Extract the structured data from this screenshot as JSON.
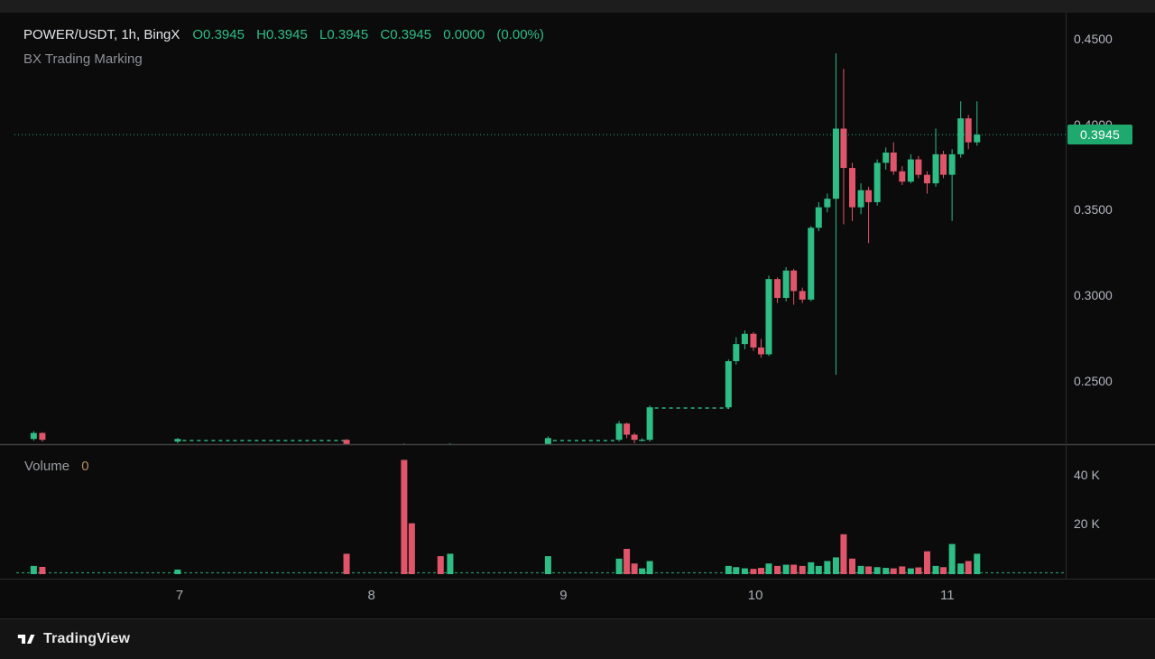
{
  "header": {
    "symbol_line": "POWER/USDT, 1h, BingX",
    "ohlc": {
      "open": "O0.3945",
      "high": "H0.3945",
      "low": "L0.3945",
      "close": "C0.3945",
      "change": "0.0000",
      "change_pct": "(0.00%)"
    },
    "subtitle": "BX Trading Marking"
  },
  "volume_panel": {
    "label": "Volume",
    "value": "0"
  },
  "price_tag": {
    "value": "0.3945"
  },
  "footer": {
    "brand": "TradingView"
  },
  "colors": {
    "up": "#2ebd85",
    "down": "#e0556a",
    "tag_bg": "#1eaa6e",
    "tag_text": "#ffffff",
    "axis_text": "#b2b5be",
    "time_text": "#a8abb3",
    "legend_text": "#e4e6eb",
    "muted_text": "#8d9096",
    "volume_value_text": "#b08d5f",
    "divider": "#3f3f3f",
    "grid_line": "#2a2a2a",
    "background": "#0b0b0b"
  },
  "chart_data": {
    "type": "candlestick",
    "symbol": "POWER/USDT",
    "interval": "1h",
    "exchange": "BingX",
    "ohlc_numeric": {
      "open": 0.3945,
      "high": 0.3945,
      "low": 0.3945,
      "close": 0.3945,
      "change": 0.0,
      "change_pct": 0.0
    },
    "last_price": 0.3945,
    "price_axis": {
      "ticks": [
        0.45,
        0.4,
        0.35,
        0.3,
        0.25
      ],
      "tick_labels": [
        "0.4500",
        "0.4000",
        "0.3500",
        "0.3000",
        "0.2500"
      ],
      "visible_range": [
        0.205,
        0.46
      ]
    },
    "time_axis": {
      "tick_days": [
        7,
        8,
        9,
        10,
        11
      ],
      "tick_labels": [
        "7",
        "8",
        "9",
        "10",
        "11"
      ],
      "unit": "day of month"
    },
    "volume_axis": {
      "ticks": [
        40000,
        20000
      ],
      "tick_labels": [
        "40 K",
        "20 K"
      ]
    },
    "flat_segments": [
      {
        "from_day": 7.03,
        "to_day": 7.85,
        "price": 0.2156
      },
      {
        "from_day": 8.96,
        "to_day": 9.27,
        "price": 0.2156
      },
      {
        "from_day": 9.49,
        "to_day": 9.85,
        "price": 0.2346
      }
    ],
    "candles": [
      {
        "t": 6.24,
        "o": 0.2165,
        "h": 0.221,
        "l": 0.2155,
        "c": 0.22,
        "v": 3000
      },
      {
        "t": 6.285,
        "o": 0.22,
        "h": 0.2205,
        "l": 0.215,
        "c": 0.216,
        "v": 2600
      },
      {
        "t": 6.99,
        "o": 0.215,
        "h": 0.217,
        "l": 0.214,
        "c": 0.2165,
        "v": 1500
      },
      {
        "t": 7.87,
        "o": 0.216,
        "h": 0.2165,
        "l": 0.212,
        "c": 0.2135,
        "v": 8000
      },
      {
        "t": 8.17,
        "o": 0.2125,
        "h": 0.214,
        "l": 0.208,
        "c": 0.21,
        "v": 46500
      },
      {
        "t": 8.21,
        "o": 0.21,
        "h": 0.212,
        "l": 0.208,
        "c": 0.209,
        "v": 20500
      },
      {
        "t": 8.36,
        "o": 0.21,
        "h": 0.2115,
        "l": 0.2085,
        "c": 0.2095,
        "v": 7000
      },
      {
        "t": 8.41,
        "o": 0.2095,
        "h": 0.214,
        "l": 0.209,
        "c": 0.2135,
        "v": 8000
      },
      {
        "t": 8.92,
        "o": 0.2135,
        "h": 0.218,
        "l": 0.213,
        "c": 0.217,
        "v": 7000
      },
      {
        "t": 9.29,
        "o": 0.216,
        "h": 0.227,
        "l": 0.215,
        "c": 0.2255,
        "v": 6000
      },
      {
        "t": 9.33,
        "o": 0.2255,
        "h": 0.226,
        "l": 0.217,
        "c": 0.219,
        "v": 10000
      },
      {
        "t": 9.37,
        "o": 0.219,
        "h": 0.22,
        "l": 0.214,
        "c": 0.216,
        "v": 4000
      },
      {
        "t": 9.41,
        "o": 0.216,
        "h": 0.217,
        "l": 0.215,
        "c": 0.216,
        "v": 2000
      },
      {
        "t": 9.45,
        "o": 0.216,
        "h": 0.236,
        "l": 0.215,
        "c": 0.235,
        "v": 5000
      },
      {
        "t": 9.86,
        "o": 0.235,
        "h": 0.263,
        "l": 0.234,
        "c": 0.262,
        "v": 3000
      },
      {
        "t": 9.9,
        "o": 0.262,
        "h": 0.276,
        "l": 0.26,
        "c": 0.272,
        "v": 2500
      },
      {
        "t": 9.945,
        "o": 0.272,
        "h": 0.28,
        "l": 0.269,
        "c": 0.278,
        "v": 2000
      },
      {
        "t": 9.99,
        "o": 0.278,
        "h": 0.279,
        "l": 0.268,
        "c": 0.27,
        "v": 1800
      },
      {
        "t": 10.03,
        "o": 0.27,
        "h": 0.275,
        "l": 0.264,
        "c": 0.266,
        "v": 2200
      },
      {
        "t": 10.07,
        "o": 0.266,
        "h": 0.312,
        "l": 0.265,
        "c": 0.31,
        "v": 4000
      },
      {
        "t": 10.115,
        "o": 0.31,
        "h": 0.311,
        "l": 0.296,
        "c": 0.299,
        "v": 3000
      },
      {
        "t": 10.16,
        "o": 0.299,
        "h": 0.317,
        "l": 0.297,
        "c": 0.315,
        "v": 3500
      },
      {
        "t": 10.2,
        "o": 0.315,
        "h": 0.316,
        "l": 0.295,
        "c": 0.303,
        "v": 3500
      },
      {
        "t": 10.245,
        "o": 0.303,
        "h": 0.305,
        "l": 0.296,
        "c": 0.298,
        "v": 3000
      },
      {
        "t": 10.29,
        "o": 0.298,
        "h": 0.341,
        "l": 0.297,
        "c": 0.34,
        "v": 4500
      },
      {
        "t": 10.33,
        "o": 0.34,
        "h": 0.355,
        "l": 0.338,
        "c": 0.352,
        "v": 3000
      },
      {
        "t": 10.375,
        "o": 0.352,
        "h": 0.36,
        "l": 0.349,
        "c": 0.357,
        "v": 5000
      },
      {
        "t": 10.42,
        "o": 0.357,
        "h": 0.442,
        "l": 0.254,
        "c": 0.398,
        "v": 6500
      },
      {
        "t": 10.46,
        "o": 0.398,
        "h": 0.433,
        "l": 0.342,
        "c": 0.375,
        "v": 16000
      },
      {
        "t": 10.505,
        "o": 0.375,
        "h": 0.378,
        "l": 0.344,
        "c": 0.352,
        "v": 6000
      },
      {
        "t": 10.55,
        "o": 0.352,
        "h": 0.366,
        "l": 0.348,
        "c": 0.362,
        "v": 3000
      },
      {
        "t": 10.59,
        "o": 0.362,
        "h": 0.364,
        "l": 0.331,
        "c": 0.355,
        "v": 2800
      },
      {
        "t": 10.635,
        "o": 0.355,
        "h": 0.38,
        "l": 0.353,
        "c": 0.378,
        "v": 2500
      },
      {
        "t": 10.68,
        "o": 0.378,
        "h": 0.387,
        "l": 0.374,
        "c": 0.384,
        "v": 2200
      },
      {
        "t": 10.72,
        "o": 0.384,
        "h": 0.39,
        "l": 0.371,
        "c": 0.373,
        "v": 2000
      },
      {
        "t": 10.765,
        "o": 0.373,
        "h": 0.376,
        "l": 0.365,
        "c": 0.367,
        "v": 2800
      },
      {
        "t": 10.81,
        "o": 0.367,
        "h": 0.383,
        "l": 0.366,
        "c": 0.38,
        "v": 2000
      },
      {
        "t": 10.85,
        "o": 0.38,
        "h": 0.382,
        "l": 0.369,
        "c": 0.371,
        "v": 2400
      },
      {
        "t": 10.895,
        "o": 0.371,
        "h": 0.373,
        "l": 0.36,
        "c": 0.366,
        "v": 9000
      },
      {
        "t": 10.94,
        "o": 0.366,
        "h": 0.398,
        "l": 0.364,
        "c": 0.383,
        "v": 3000
      },
      {
        "t": 10.98,
        "o": 0.383,
        "h": 0.385,
        "l": 0.369,
        "c": 0.371,
        "v": 2500
      },
      {
        "t": 11.025,
        "o": 0.371,
        "h": 0.386,
        "l": 0.344,
        "c": 0.383,
        "v": 12000
      },
      {
        "t": 11.07,
        "o": 0.383,
        "h": 0.414,
        "l": 0.381,
        "c": 0.404,
        "v": 4000
      },
      {
        "t": 11.11,
        "o": 0.404,
        "h": 0.406,
        "l": 0.386,
        "c": 0.39,
        "v": 5000
      },
      {
        "t": 11.155,
        "o": 0.39,
        "h": 0.414,
        "l": 0.388,
        "c": 0.3945,
        "v": 8000
      }
    ]
  }
}
